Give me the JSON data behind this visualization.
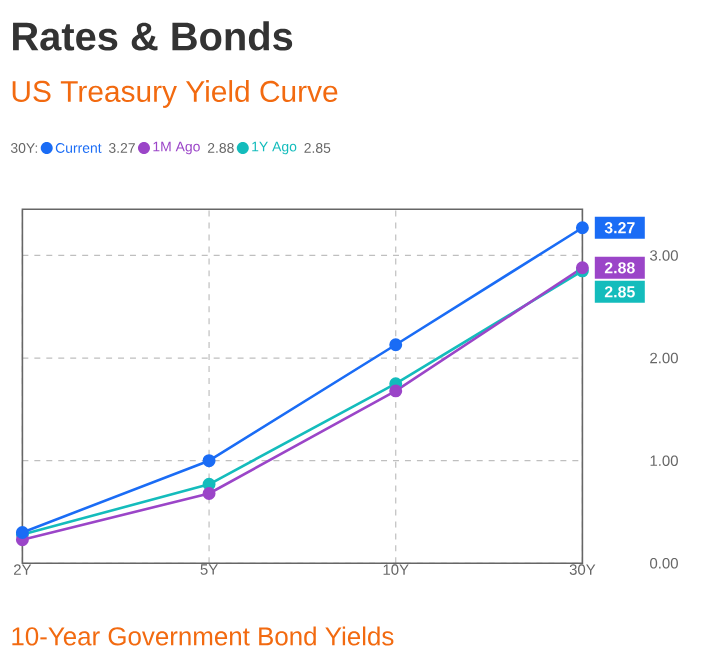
{
  "chart_data": {
    "type": "line",
    "title": "Rates & Bonds",
    "subtitle": "US Treasury Yield Curve",
    "legend_title": "30Y:",
    "categories": [
      "2Y",
      "5Y",
      "10Y",
      "30Y"
    ],
    "series": [
      {
        "name": "Current",
        "color": "#1a6cf5",
        "values": [
          0.3,
          1.0,
          2.13,
          3.27
        ],
        "value_labels": [
          null,
          null,
          null,
          "3.27"
        ]
      },
      {
        "name": "1M Ago",
        "color": "#9b45c8",
        "values": [
          0.23,
          0.68,
          1.68,
          2.88
        ],
        "value_labels": [
          null,
          null,
          null,
          "2.88"
        ]
      },
      {
        "name": "1Y Ago",
        "color": "#14bcbc",
        "values": [
          0.28,
          0.77,
          1.75,
          2.85
        ],
        "value_labels": [
          null,
          null,
          null,
          "2.85"
        ]
      }
    ],
    "ylim": [
      0,
      3.45
    ],
    "yticks": [
      {
        "value": 0,
        "label": "0.00"
      },
      {
        "value": 1,
        "label": "1.00"
      },
      {
        "value": 2,
        "label": "2.00"
      },
      {
        "value": 3,
        "label": "3.00"
      }
    ],
    "grid": true,
    "legend": "top left",
    "marker": "circle",
    "line_style": "solid",
    "annotations": [
      "10-Year Government Bond Yields"
    ]
  }
}
